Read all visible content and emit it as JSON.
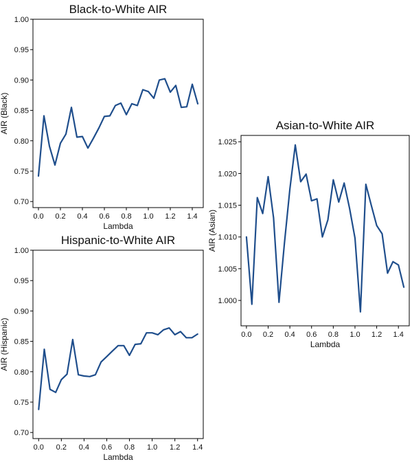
{
  "chart_data": [
    {
      "type": "line",
      "title": "Black-to-White AIR",
      "xlabel": "Lambda",
      "ylabel": "AIR (Black)",
      "xlim": [
        -0.05,
        1.5
      ],
      "ylim": [
        0.69,
        1.0
      ],
      "xticks": [
        "0.0",
        "0.2",
        "0.4",
        "0.6",
        "0.8",
        "1.0",
        "1.2",
        "1.4"
      ],
      "yticks": [
        "0.70",
        "0.75",
        "0.80",
        "0.85",
        "0.90",
        "0.95",
        "1.00"
      ],
      "line_color": "#1f4e8c",
      "series": [
        {
          "x": [
            0.0,
            0.05,
            0.1,
            0.15,
            0.2,
            0.25,
            0.3,
            0.35,
            0.4,
            0.45,
            0.5,
            0.55,
            0.6,
            0.65,
            0.7,
            0.75,
            0.8,
            0.85,
            0.9,
            0.95,
            1.0,
            1.05,
            1.1,
            1.15,
            1.2,
            1.25,
            1.3,
            1.35,
            1.4,
            1.45
          ],
          "y": [
            0.742,
            0.841,
            0.791,
            0.76,
            0.796,
            0.811,
            0.855,
            0.806,
            0.807,
            0.788,
            0.804,
            0.821,
            0.84,
            0.841,
            0.858,
            0.862,
            0.843,
            0.861,
            0.858,
            0.884,
            0.881,
            0.87,
            0.9,
            0.902,
            0.88,
            0.891,
            0.855,
            0.856,
            0.893,
            0.861
          ]
        }
      ]
    },
    {
      "type": "line",
      "title": "Hispanic-to-White AIR",
      "xlabel": "Lambda",
      "ylabel": "AIR (Hispanic)",
      "xlim": [
        -0.05,
        1.45
      ],
      "ylim": [
        0.69,
        1.0
      ],
      "xticks": [
        "0.0",
        "0.2",
        "0.4",
        "0.6",
        "0.8",
        "1.0",
        "1.2",
        "1.4"
      ],
      "yticks": [
        "0.70",
        "0.75",
        "0.80",
        "0.85",
        "0.90",
        "0.95",
        "1.00"
      ],
      "line_color": "#1f4e8c",
      "series": [
        {
          "x": [
            0.0,
            0.05,
            0.1,
            0.15,
            0.2,
            0.25,
            0.3,
            0.35,
            0.4,
            0.45,
            0.5,
            0.55,
            0.6,
            0.65,
            0.7,
            0.75,
            0.8,
            0.85,
            0.9,
            0.95,
            1.0,
            1.05,
            1.1,
            1.15,
            1.2,
            1.25,
            1.3,
            1.35,
            1.4
          ],
          "y": [
            0.738,
            0.837,
            0.771,
            0.766,
            0.787,
            0.796,
            0.853,
            0.795,
            0.793,
            0.792,
            0.795,
            0.816,
            0.825,
            0.834,
            0.843,
            0.843,
            0.827,
            0.845,
            0.846,
            0.864,
            0.864,
            0.861,
            0.869,
            0.872,
            0.861,
            0.866,
            0.856,
            0.856,
            0.862
          ]
        }
      ]
    },
    {
      "type": "line",
      "title": "Asian-to-White AIR",
      "xlabel": "Lambda",
      "ylabel": "AIR (Asian)",
      "xlim": [
        -0.05,
        1.5
      ],
      "ylim": [
        0.996,
        1.026
      ],
      "xticks": [
        "0.0",
        "0.2",
        "0.4",
        "0.6",
        "0.8",
        "1.0",
        "1.2",
        "1.4"
      ],
      "yticks": [
        "1.000",
        "1.005",
        "1.010",
        "1.015",
        "1.020",
        "1.025"
      ],
      "line_color": "#1f4e8c",
      "series": [
        {
          "x": [
            0.0,
            0.05,
            0.1,
            0.15,
            0.2,
            0.25,
            0.3,
            0.35,
            0.4,
            0.45,
            0.5,
            0.55,
            0.6,
            0.65,
            0.7,
            0.75,
            0.8,
            0.85,
            0.9,
            0.95,
            1.0,
            1.05,
            1.1,
            1.15,
            1.2,
            1.25,
            1.3,
            1.35,
            1.4,
            1.45
          ],
          "y": [
            1.01,
            0.9994,
            1.0162,
            1.0137,
            1.0195,
            1.013,
            0.9997,
            1.009,
            1.0175,
            1.0245,
            1.0187,
            1.0199,
            1.0157,
            1.016,
            1.01,
            1.0127,
            1.019,
            1.0155,
            1.0185,
            1.0145,
            1.0098,
            0.9982,
            1.0183,
            1.015,
            1.0118,
            1.0105,
            1.0043,
            1.0061,
            1.0056,
            1.0021
          ]
        }
      ]
    }
  ]
}
